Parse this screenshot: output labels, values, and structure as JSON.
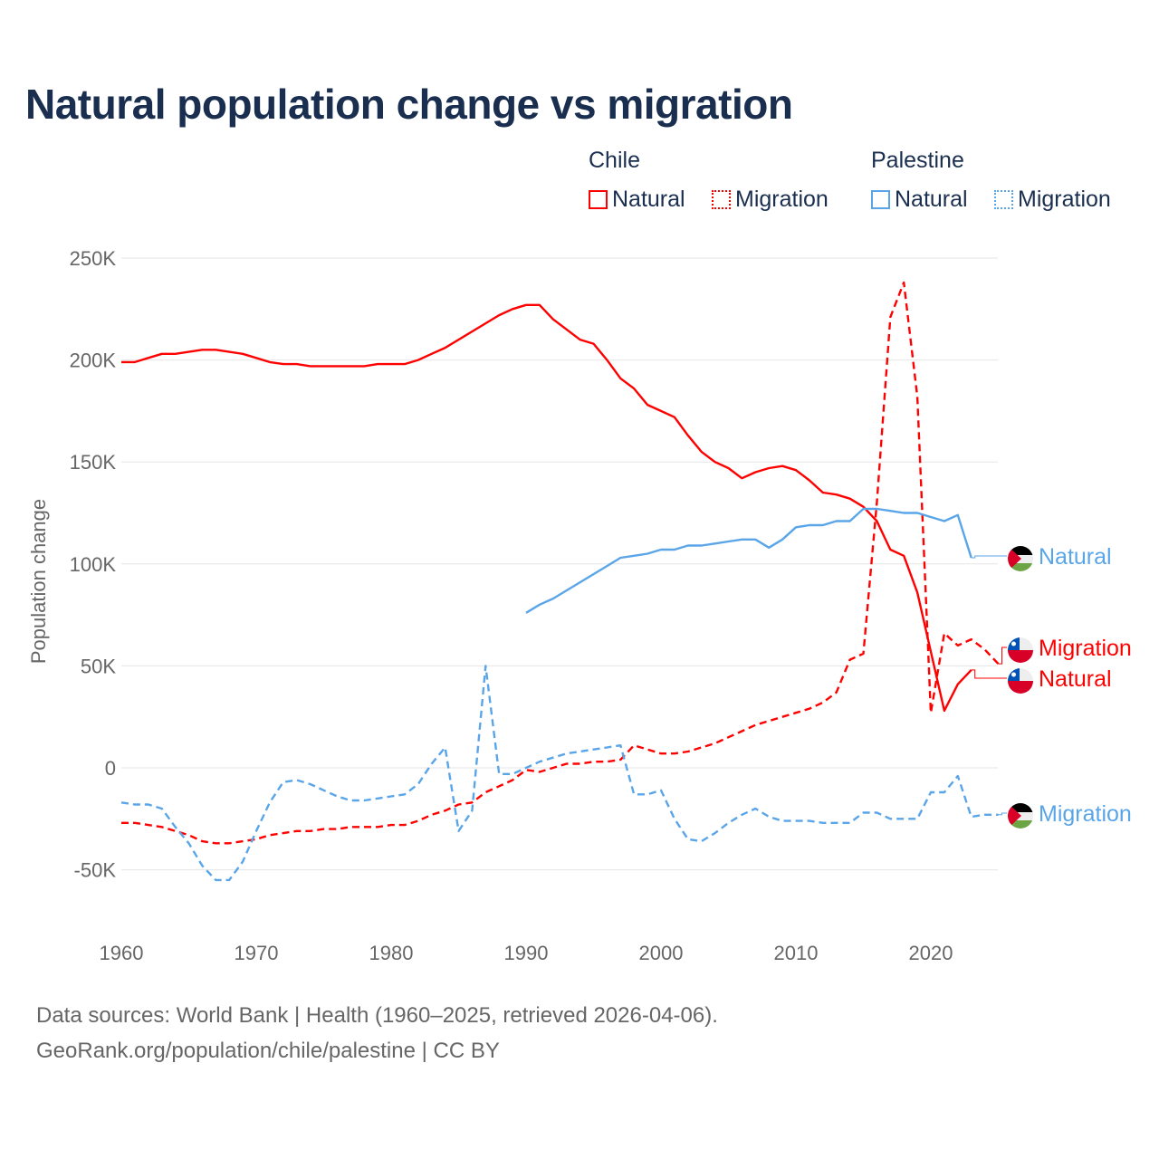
{
  "title": "Natural population change vs migration",
  "legend": {
    "groups": [
      {
        "name": "Chile",
        "color": "#ff0000",
        "items": [
          "Natural",
          "Migration"
        ]
      },
      {
        "name": "Palestine",
        "color": "#5aa5e8",
        "items": [
          "Natural",
          "Migration"
        ]
      }
    ]
  },
  "footer": {
    "line1": "Data sources: World Bank | Health (1960–2025, retrieved 2026-04-06).",
    "line2": "GeoRank.org/population/chile/palestine | CC BY"
  },
  "chart_data": {
    "type": "line",
    "title": "Natural population change vs migration",
    "xlabel": "",
    "ylabel": "Population change",
    "xlim": [
      1960,
      2025
    ],
    "ylim": [
      -75000,
      260000
    ],
    "x_ticks": [
      1960,
      1970,
      1980,
      1990,
      2000,
      2010,
      2020
    ],
    "x_tick_labels": [
      "1960",
      "1970",
      "1980",
      "1990",
      "2000",
      "2010",
      "2020"
    ],
    "y_ticks": [
      -50000,
      0,
      50000,
      100000,
      150000,
      200000,
      250000
    ],
    "y_tick_labels": [
      "-50K",
      "0",
      "50K",
      "100K",
      "150K",
      "200K",
      "250K"
    ],
    "grid": true,
    "series": [
      {
        "name": "Chile Natural",
        "label": "Natural",
        "country": "Chile",
        "color": "#ff0000",
        "dash": "solid",
        "start": 1960,
        "values": [
          199,
          199,
          201,
          203,
          203,
          204,
          205,
          205,
          204,
          203,
          201,
          199,
          198,
          198,
          197,
          197,
          197,
          197,
          197,
          198,
          198,
          198,
          200,
          203,
          206,
          210,
          214,
          218,
          222,
          225,
          227,
          227,
          220,
          215,
          210,
          208,
          200,
          191,
          186,
          178,
          175,
          172,
          163,
          155,
          150,
          147,
          142,
          145,
          147,
          148,
          146,
          141,
          135,
          134,
          132,
          128,
          121,
          107,
          104,
          86,
          57,
          28,
          41,
          48
        ]
      },
      {
        "name": "Chile Migration",
        "label": "Migration",
        "country": "Chile",
        "color": "#ff0000",
        "dash": "dashed",
        "start": 1960,
        "values": [
          -27,
          -27,
          -28,
          -29,
          -31,
          -33,
          -36,
          -37,
          -37,
          -36,
          -35,
          -33,
          -32,
          -31,
          -31,
          -30,
          -30,
          -29,
          -29,
          -29,
          -28,
          -28,
          -26,
          -23,
          -21,
          -18,
          -17,
          -12,
          -9,
          -6,
          -1,
          -2,
          0,
          2,
          2,
          3,
          3,
          4,
          11,
          9,
          7,
          7,
          8,
          10,
          12,
          15,
          18,
          21,
          23,
          25,
          27,
          29,
          32,
          37,
          53,
          56,
          130,
          221,
          238,
          182,
          27,
          66,
          60,
          63,
          58,
          51
        ]
      },
      {
        "name": "Palestine Natural",
        "label": "Natural",
        "country": "Palestine",
        "color": "#5aa5e8",
        "dash": "solid",
        "start": 1990,
        "values": [
          76,
          80,
          83,
          87,
          91,
          95,
          99,
          103,
          104,
          105,
          107,
          107,
          109,
          109,
          110,
          111,
          112,
          112,
          108,
          112,
          118,
          119,
          119,
          121,
          121,
          127,
          127,
          126,
          125,
          125,
          123,
          121,
          124,
          103
        ]
      },
      {
        "name": "Palestine Migration",
        "label": "Migration",
        "country": "Palestine",
        "color": "#5aa5e8",
        "dash": "dashed",
        "start": 1960,
        "values": [
          -17,
          -18,
          -18,
          -20,
          -29,
          -37,
          -48,
          -55,
          -55,
          -46,
          -31,
          -17,
          -7,
          -6,
          -8,
          -11,
          -14,
          -16,
          -16,
          -15,
          -14,
          -13,
          -8,
          2,
          10,
          -31,
          -21,
          50,
          -3,
          -3,
          0,
          3,
          5,
          7,
          8,
          9,
          10,
          11,
          -13,
          -13,
          -11,
          -25,
          -35,
          -36,
          -32,
          -27,
          -23,
          -20,
          -24,
          -26,
          -26,
          -26,
          -27,
          -27,
          -27,
          -22,
          -22,
          -25,
          -25,
          -25,
          -12,
          -12,
          -4,
          -24,
          -23,
          -23
        ]
      }
    ],
    "value_unit": "thousands"
  }
}
